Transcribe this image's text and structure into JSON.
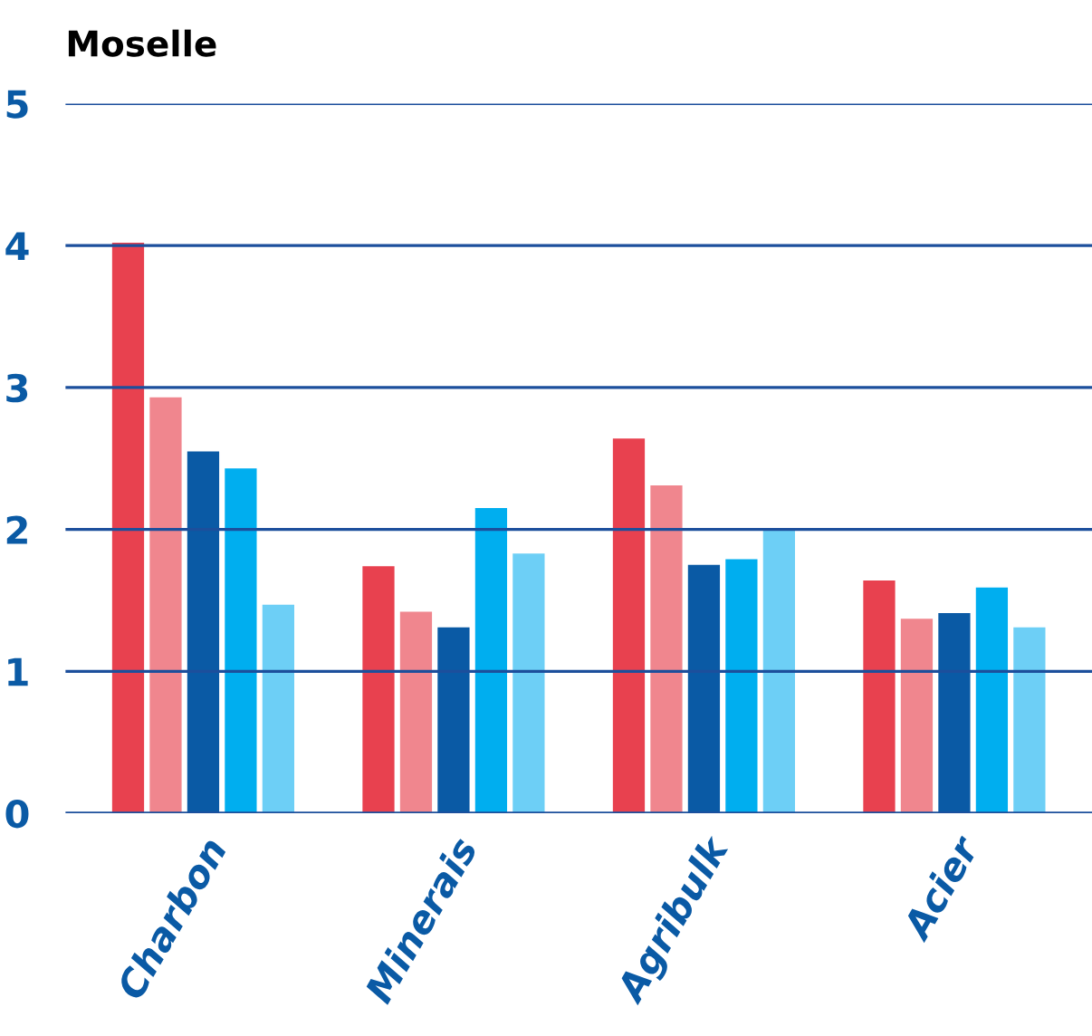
{
  "chart_data": {
    "type": "bar",
    "title": "Moselle",
    "categories": [
      "Charbon",
      "Minerais",
      "Agribulk",
      "Acier"
    ],
    "series": [
      {
        "color": "#e8414f",
        "values": [
          4.02,
          1.74,
          2.64,
          1.64
        ]
      },
      {
        "color": "#f0868e",
        "values": [
          2.93,
          1.42,
          2.31,
          1.37
        ]
      },
      {
        "color": "#0a5aa5",
        "values": [
          2.55,
          1.31,
          1.75,
          1.41
        ]
      },
      {
        "color": "#00aeef",
        "values": [
          2.43,
          2.15,
          1.79,
          1.59
        ]
      },
      {
        "color": "#6dcff6",
        "values": [
          1.47,
          1.83,
          2.0,
          1.31
        ]
      }
    ],
    "ylim": [
      0,
      5
    ],
    "yticks": [
      0,
      1,
      2,
      3,
      4,
      5
    ],
    "grid": "y",
    "legend": false
  }
}
